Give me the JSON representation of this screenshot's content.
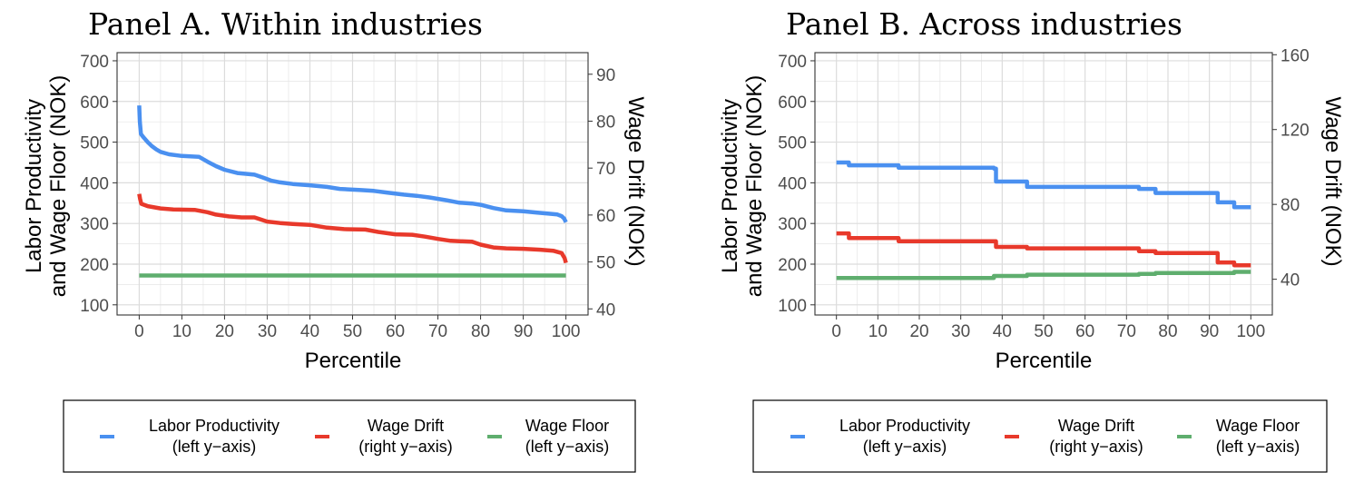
{
  "colors": {
    "productivity": "#4a90f0",
    "drift": "#e8392b",
    "floor": "#5fae6e",
    "grid": "#e5e5e5"
  },
  "chart_data": [
    {
      "type": "line",
      "title": "Panel A. Within industries",
      "xlabel": "Percentile",
      "ylabel_line1": "Labor Productivity",
      "ylabel_line2": "and Wage Floor (NOK)",
      "y2label": "Wage Drift (NOK)",
      "xlim": [
        0,
        100
      ],
      "ylim": [
        75,
        720
      ],
      "y2lim": [
        38.7,
        94.6
      ],
      "x_ticks": [
        0,
        10,
        20,
        30,
        40,
        50,
        60,
        70,
        80,
        90,
        100
      ],
      "y_ticks": [
        100,
        200,
        300,
        400,
        500,
        600,
        700
      ],
      "y2_ticks": [
        40,
        50,
        60,
        70,
        80,
        90
      ],
      "series": [
        {
          "name": "Labor Productivity",
          "legend_line1": "Labor Productivity",
          "legend_line2": "(left y−axis)",
          "axis": "left",
          "color_key": "productivity",
          "points": [
            [
              0,
              590
            ],
            [
              0.15,
              550
            ],
            [
              0.4,
              520
            ],
            [
              1,
              512
            ],
            [
              2,
              500
            ],
            [
              3,
              490
            ],
            [
              4,
              482
            ],
            [
              5,
              476
            ],
            [
              7,
              470
            ],
            [
              10,
              466
            ],
            [
              14,
              464
            ],
            [
              16,
              452
            ],
            [
              18,
              441
            ],
            [
              20,
              432
            ],
            [
              23,
              424
            ],
            [
              27,
              420
            ],
            [
              29,
              413
            ],
            [
              31,
              405
            ],
            [
              33,
              401
            ],
            [
              36,
              397
            ],
            [
              40,
              394
            ],
            [
              44,
              390
            ],
            [
              47,
              385
            ],
            [
              52,
              382
            ],
            [
              55,
              380
            ],
            [
              58,
              376
            ],
            [
              62,
              371
            ],
            [
              65,
              368
            ],
            [
              68,
              364
            ],
            [
              72,
              357
            ],
            [
              75,
              351
            ],
            [
              78,
              349
            ],
            [
              80,
              346
            ],
            [
              83,
              338
            ],
            [
              86,
              332
            ],
            [
              90,
              330
            ],
            [
              93,
              327
            ],
            [
              96,
              324
            ],
            [
              98,
              322
            ],
            [
              99,
              318
            ],
            [
              99.6,
              312
            ],
            [
              100,
              303
            ]
          ]
        },
        {
          "name": "Wage Drift",
          "legend_line1": "Wage Drift",
          "legend_line2": "(right y−axis)",
          "axis": "right",
          "color_key": "drift",
          "points": [
            [
              0,
              64.5
            ],
            [
              0.2,
              63.5
            ],
            [
              0.5,
              62.4
            ],
            [
              2,
              61.9
            ],
            [
              5,
              61.4
            ],
            [
              8,
              61.2
            ],
            [
              13,
              61.1
            ],
            [
              16,
              60.6
            ],
            [
              18,
              60.1
            ],
            [
              21,
              59.7
            ],
            [
              24,
              59.5
            ],
            [
              27,
              59.5
            ],
            [
              30,
              58.6
            ],
            [
              33,
              58.3
            ],
            [
              36,
              58.1
            ],
            [
              40,
              57.9
            ],
            [
              44,
              57.3
            ],
            [
              48,
              57.0
            ],
            [
              53,
              56.9
            ],
            [
              56,
              56.4
            ],
            [
              60,
              55.9
            ],
            [
              64,
              55.8
            ],
            [
              67,
              55.4
            ],
            [
              70,
              54.9
            ],
            [
              73,
              54.5
            ],
            [
              78,
              54.3
            ],
            [
              80,
              53.7
            ],
            [
              83,
              53.1
            ],
            [
              86,
              52.9
            ],
            [
              90,
              52.8
            ],
            [
              94,
              52.6
            ],
            [
              97,
              52.4
            ],
            [
              99,
              51.9
            ],
            [
              99.7,
              50.8
            ],
            [
              100,
              49.8
            ]
          ]
        },
        {
          "name": "Wage Floor",
          "legend_line1": "Wage Floor",
          "legend_line2": "(left y−axis)",
          "axis": "left",
          "color_key": "floor",
          "points": [
            [
              0,
              172
            ],
            [
              100,
              172
            ]
          ]
        }
      ]
    },
    {
      "type": "line",
      "title": "Panel B. Across industries",
      "xlabel": "Percentile",
      "ylabel_line1": "Labor Productivity",
      "ylabel_line2": "and Wage Floor (NOK)",
      "y2label": "Wage Drift (NOK)",
      "xlim": [
        0,
        100
      ],
      "ylim": [
        75,
        720
      ],
      "y2lim": [
        20.9,
        161.1
      ],
      "x_ticks": [
        0,
        10,
        20,
        30,
        40,
        50,
        60,
        70,
        80,
        90,
        100
      ],
      "y_ticks": [
        100,
        200,
        300,
        400,
        500,
        600,
        700
      ],
      "y2_ticks": [
        40,
        80,
        120,
        160
      ],
      "series": [
        {
          "name": "Labor Productivity",
          "legend_line1": "Labor Productivity",
          "legend_line2": "(left y−axis)",
          "axis": "left",
          "color_key": "productivity",
          "points": [
            [
              0,
              450
            ],
            [
              3,
              450
            ],
            [
              3,
              443
            ],
            [
              15,
              443
            ],
            [
              15,
              437
            ],
            [
              38,
              437
            ],
            [
              38,
              435
            ],
            [
              38.5,
              435
            ],
            [
              38.5,
              403
            ],
            [
              46,
              403
            ],
            [
              46,
              390
            ],
            [
              73,
              390
            ],
            [
              73,
              385
            ],
            [
              77,
              385
            ],
            [
              77,
              375
            ],
            [
              92,
              375
            ],
            [
              92,
              352
            ],
            [
              96,
              352
            ],
            [
              96,
              340
            ],
            [
              100,
              340
            ]
          ]
        },
        {
          "name": "Wage Drift",
          "legend_line1": "Wage Drift",
          "legend_line2": "(right y−axis)",
          "axis": "right",
          "color_key": "drift",
          "points": [
            [
              0,
              64.5
            ],
            [
              3,
              64.5
            ],
            [
              3,
              62
            ],
            [
              15,
              62
            ],
            [
              15,
              60.3
            ],
            [
              38.5,
              60.3
            ],
            [
              38.5,
              57.3
            ],
            [
              46,
              57.3
            ],
            [
              46,
              56.5
            ],
            [
              73,
              56.5
            ],
            [
              73,
              55
            ],
            [
              77,
              55
            ],
            [
              77,
              54
            ],
            [
              92,
              54
            ],
            [
              92,
              49
            ],
            [
              96,
              49
            ],
            [
              96,
              47.5
            ],
            [
              100,
              47.5
            ]
          ]
        },
        {
          "name": "Wage Floor",
          "legend_line1": "Wage Floor",
          "legend_line2": "(left y−axis)",
          "axis": "left",
          "color_key": "floor",
          "points": [
            [
              0,
              166
            ],
            [
              38,
              166
            ],
            [
              38,
              171
            ],
            [
              46,
              171
            ],
            [
              46,
              174
            ],
            [
              73,
              174
            ],
            [
              73,
              176
            ],
            [
              77,
              176
            ],
            [
              77,
              178
            ],
            [
              96,
              178
            ],
            [
              96,
              181
            ],
            [
              100,
              181
            ]
          ]
        }
      ]
    }
  ]
}
